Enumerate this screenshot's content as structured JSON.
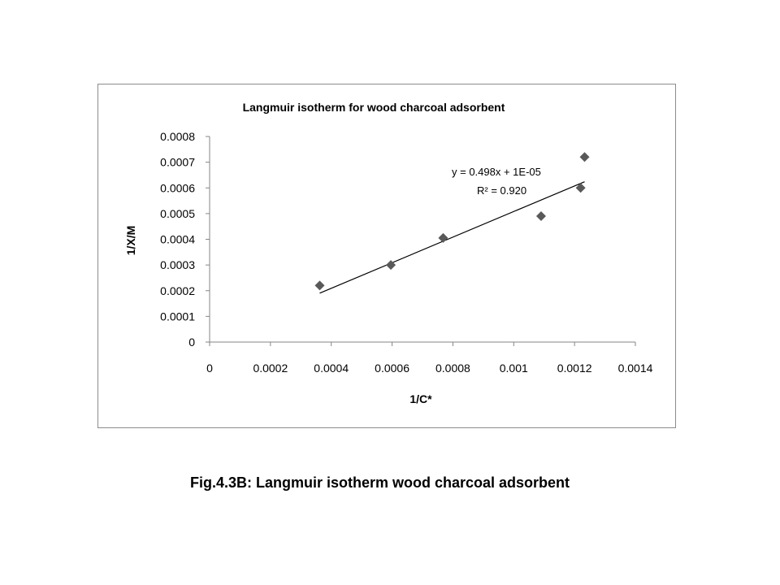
{
  "chart_data": {
    "type": "scatter",
    "title": "Langmuir isotherm for wood charcoal  adsorbent",
    "xlabel": "1/C*",
    "ylabel": "1/X/M",
    "xlim": [
      0,
      0.0014
    ],
    "ylim": [
      0,
      0.0008
    ],
    "x_ticks": [
      0,
      0.0002,
      0.0004,
      0.0006,
      0.0008,
      0.001,
      0.0012,
      0.0014
    ],
    "x_tick_labels": [
      "0",
      "0.0002",
      "0.0004",
      "0.0006",
      "0.0008",
      "0.001",
      "0.0012",
      "0.0014"
    ],
    "y_ticks": [
      0,
      0.0001,
      0.0002,
      0.0003,
      0.0004,
      0.0005,
      0.0006,
      0.0007,
      0.0008
    ],
    "y_tick_labels": [
      "0",
      "0.0001",
      "0.0002",
      "0.0003",
      "0.0004",
      "0.0005",
      "0.0006",
      "0.0007",
      "0.0008"
    ],
    "grid": false,
    "legend": "none",
    "marker": "diamond",
    "marker_color": "#595959",
    "points": [
      {
        "x": 0.000362,
        "y": 0.00022
      },
      {
        "x": 0.000596,
        "y": 0.0003
      },
      {
        "x": 0.000768,
        "y": 0.000405
      },
      {
        "x": 0.00109,
        "y": 0.00049
      },
      {
        "x": 0.00122,
        "y": 0.0006
      },
      {
        "x": 0.001233,
        "y": 0.00072
      }
    ],
    "trendline": {
      "type": "linear",
      "slope": 0.498,
      "intercept": 1e-05,
      "x_range": [
        0.000362,
        0.001233
      ],
      "equation_label": "y = 0.498x + 1E-05",
      "r2_label": "R² = 0.920"
    }
  },
  "caption": "Fig.4.3B: Langmuir isotherm wood charcoal adsorbent"
}
